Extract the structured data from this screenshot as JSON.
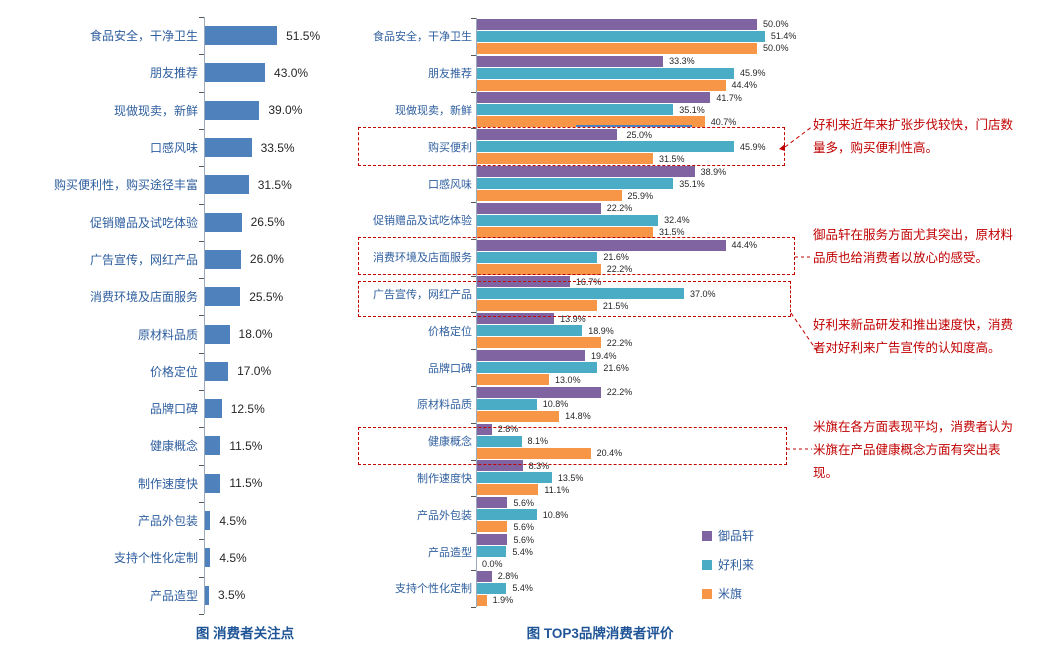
{
  "chart_data": [
    {
      "id": "consumer-concerns",
      "type": "bar",
      "orientation": "horizontal",
      "title": "图  消费者关注点",
      "value_suffix": "%",
      "bar_color": "#4F81BD",
      "xlim": [
        0,
        100
      ],
      "grid": false,
      "data_labels": true,
      "categories": [
        "食品安全，干净卫生",
        "朋友推荐",
        "现做现卖，新鲜",
        "口感风味",
        "购买便利性，购买途径丰富",
        "促销赠品及试吃体验",
        "广告宣传，网红产品",
        "消费环境及店面服务",
        "原材料品质",
        "价格定位",
        "品牌口碑",
        "健康概念",
        "制作速度快",
        "产品外包装",
        "支持个性化定制",
        "产品造型"
      ],
      "values": [
        51.5,
        43.0,
        39.0,
        33.5,
        31.5,
        26.5,
        26.0,
        25.5,
        18.0,
        17.0,
        12.5,
        11.5,
        11.5,
        4.5,
        4.5,
        3.5
      ]
    },
    {
      "id": "top3-brand-evaluation",
      "type": "bar",
      "orientation": "horizontal",
      "title": "图 TOP3品牌消费者评价",
      "value_suffix": "%",
      "xlim": [
        0,
        55
      ],
      "grid": false,
      "data_labels": true,
      "legend_position": "right-bottom",
      "categories": [
        "食品安全，干净卫生",
        "朋友推荐",
        "现做现卖，新鲜",
        "购买便利",
        "口感风味",
        "促销赠品及试吃体验",
        "消费环境及店面服务",
        "广告宣传，网红产品",
        "价格定位",
        "品牌口碑",
        "原材料品质",
        "健康概念",
        "制作速度快",
        "产品外包装",
        "产品造型",
        "支持个性化定制"
      ],
      "series": [
        {
          "name": "御品轩",
          "color": "#8064A2",
          "values": [
            50.0,
            33.3,
            41.7,
            25.0,
            38.9,
            22.2,
            44.4,
            16.7,
            13.9,
            19.4,
            22.2,
            2.8,
            8.3,
            5.6,
            5.6,
            2.8
          ]
        },
        {
          "name": "好利来",
          "color": "#4BACC6",
          "values": [
            51.4,
            45.9,
            35.1,
            45.9,
            35.1,
            32.4,
            21.6,
            37.0,
            18.9,
            21.6,
            10.8,
            8.1,
            13.5,
            10.8,
            5.4,
            5.4
          ]
        },
        {
          "name": "米旗",
          "color": "#F79646",
          "values": [
            50.0,
            44.4,
            40.7,
            31.5,
            25.9,
            31.5,
            22.2,
            21.5,
            22.2,
            13.0,
            14.8,
            20.4,
            11.1,
            5.6,
            0.0,
            1.9
          ]
        }
      ],
      "highlighted_categories": [
        "购买便利",
        "消费环境及店面服务",
        "广告宣传，网红产品",
        "健康概念"
      ]
    }
  ],
  "annotations": {
    "color": "#C00000",
    "items": [
      {
        "target": "购买便利",
        "text": "好利来近年来扩张步伐较快，门店数量多，购买便利性高。"
      },
      {
        "target": "消费环境及店面服务",
        "text": "御品轩在服务方面尤其突出，原材料品质也给消费者以放心的感受。"
      },
      {
        "target": "广告宣传，网红产品",
        "text": "好利来新品研发和推出速度快，消费者对好利来广告宣传的认知度高。"
      },
      {
        "target": "健康概念",
        "text": "米旗在各方面表现平均，消费者认为米旗在产品健康概念方面有突出表现。"
      }
    ]
  },
  "style_colors": {
    "category_text": "#2E5E9E",
    "title_text": "#1F5597",
    "value_text": "#262626",
    "highlight_red": "#C00000",
    "axis_line": "#9AABC0"
  }
}
